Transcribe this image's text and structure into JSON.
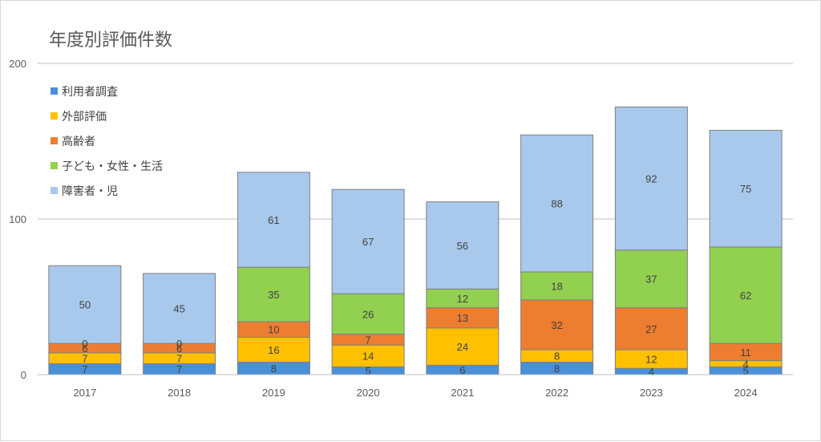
{
  "chart_data": {
    "type": "bar",
    "stacked": true,
    "title": "年度別評価件数",
    "categories": [
      "2017",
      "2018",
      "2019",
      "2020",
      "2021",
      "2022",
      "2023",
      "2024"
    ],
    "ylim": [
      0,
      200
    ],
    "yticks": [
      0,
      100,
      200
    ],
    "grid": true,
    "legend_position": "left",
    "series": [
      {
        "name": "利用者調査",
        "color": "#4a90d9",
        "values": [
          7,
          7,
          8,
          5,
          6,
          8,
          4,
          5
        ]
      },
      {
        "name": "外部評価",
        "color": "#ffc000",
        "values": [
          7,
          7,
          16,
          14,
          24,
          8,
          12,
          4
        ]
      },
      {
        "name": "高齢者",
        "color": "#ed7d31",
        "values": [
          6,
          6,
          10,
          7,
          13,
          32,
          27,
          11
        ]
      },
      {
        "name": "子ども・女性・生活",
        "color": "#92d050",
        "values": [
          0,
          0,
          35,
          26,
          12,
          18,
          37,
          62
        ]
      },
      {
        "name": "障害者・児",
        "color": "#a9c9ec",
        "values": [
          50,
          45,
          61,
          67,
          56,
          88,
          92,
          75
        ]
      }
    ]
  }
}
